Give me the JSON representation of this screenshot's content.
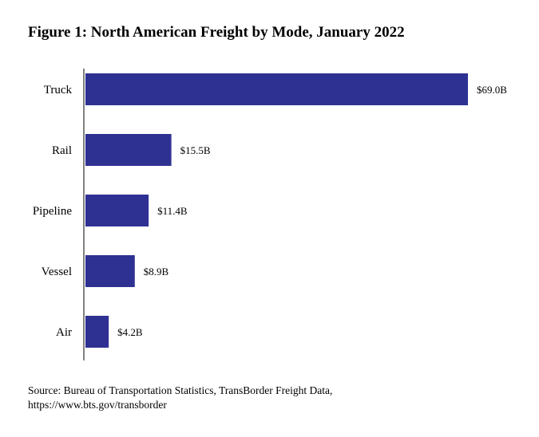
{
  "chart_data": {
    "type": "bar",
    "orientation": "horizontal",
    "title": "Figure 1: North American Freight by Mode, January 2022",
    "categories": [
      "Truck",
      "Rail",
      "Pipeline",
      "Vessel",
      "Air"
    ],
    "values": [
      69.0,
      15.5,
      11.4,
      8.9,
      4.2
    ],
    "value_labels": [
      "$69.0B",
      "$15.5B",
      "$11.4B",
      "$8.9B",
      "$4.2B"
    ],
    "xlim": [
      0,
      69.0
    ],
    "grid": false,
    "legend": false,
    "colors": {
      "bar": "#2e3192",
      "axis": "#000000"
    }
  },
  "source": {
    "line1": "Source: Bureau of Transportation Statistics, TransBorder Freight Data,",
    "line2": "https://www.bts.gov/transborder"
  }
}
